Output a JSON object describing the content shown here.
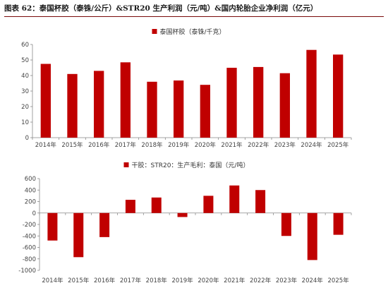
{
  "title": "图表 62：泰国杯胶（泰铢/公斤）&STR20 生产利润（元/吨）&国内轮胎企业净利润（亿元）",
  "colors": {
    "bar": "#c00000",
    "axis": "#888888",
    "rule": "#7a0a0a"
  },
  "chart_data": [
    {
      "type": "bar",
      "legend_position": "top",
      "categories": [
        "2014年",
        "2015年",
        "2016年",
        "2017年",
        "2018年",
        "2019年",
        "2020年",
        "2021年",
        "2022年",
        "2023年",
        "2024年",
        "2025年"
      ],
      "series": [
        {
          "name": "泰国杯胶（泰铢/千克）",
          "values": [
            47.5,
            41,
            43,
            48.5,
            36,
            36.8,
            34,
            45,
            45.5,
            41.5,
            56.5,
            53.5
          ]
        }
      ],
      "ylim": [
        0,
        60
      ],
      "yticks": [
        0,
        10,
        20,
        30,
        40,
        50,
        60
      ],
      "grid": false
    },
    {
      "type": "bar",
      "legend_position": "top",
      "categories": [
        "2014年",
        "2015年",
        "2016年",
        "2017年",
        "2018年",
        "2019年",
        "2020年",
        "2021年",
        "2022年",
        "2023年",
        "2024年",
        "2025年"
      ],
      "series": [
        {
          "name": "干胶：STR20：生产毛利：泰国（元/吨）",
          "values": [
            -480,
            -770,
            -420,
            230,
            270,
            -70,
            300,
            480,
            400,
            -400,
            -820,
            -380
          ]
        }
      ],
      "ylim": [
        -1000,
        600
      ],
      "yticks": [
        600,
        400,
        200,
        0,
        -200,
        -400,
        -600,
        -800,
        -1000
      ],
      "grid": false
    }
  ]
}
